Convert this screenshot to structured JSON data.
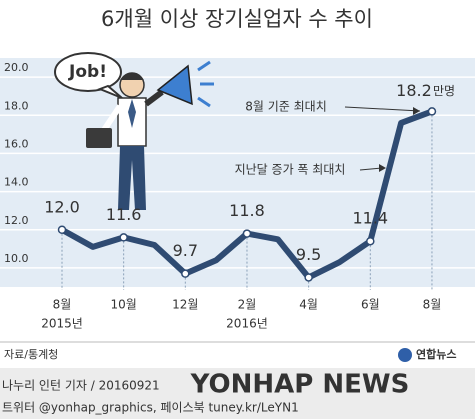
{
  "chart_data": {
    "type": "line",
    "title": "6개월 이상 장기실업자 수 추이",
    "categories": [
      "8월",
      null,
      "10월",
      null,
      "12월",
      null,
      "2월",
      null,
      "4월",
      null,
      "6월",
      null,
      "8월"
    ],
    "x_sublabels": [
      "2015년",
      null,
      null,
      null,
      null,
      null,
      "2016년",
      null,
      null,
      null,
      null,
      null,
      null
    ],
    "values": [
      12.0,
      11.1,
      11.6,
      11.2,
      9.7,
      10.4,
      11.8,
      11.5,
      9.5,
      10.3,
      11.4,
      17.6,
      18.2
    ],
    "value_labels": [
      "12.0",
      null,
      "11.6",
      null,
      "9.7",
      null,
      "11.8",
      null,
      "9.5",
      null,
      "11.4",
      null,
      "18.2"
    ],
    "unit": "만명",
    "color": "#2f4b72",
    "ylim": [
      9,
      21
    ],
    "yticks": [
      {
        "value": 10,
        "label": "10.0"
      },
      {
        "value": 12,
        "label": "12.0"
      },
      {
        "value": 14,
        "label": "14.0"
      },
      {
        "value": 16,
        "label": "16.0"
      },
      {
        "value": 18,
        "label": "18.0"
      },
      {
        "value": 20,
        "label": "20.0"
      }
    ],
    "grid": true,
    "annotations": [
      "8월 기준 최대치",
      "지난달 증가 폭 최대치"
    ],
    "illustration_text": "Job!",
    "source": "자료/통계청",
    "logo": "연합뉴스",
    "watermark": "YONHAP NEWS",
    "credit": "나누리 인턴 기자 / 20160921",
    "social": "트위터 @yonhap_graphics, 페이스북 tuney.kr/LeYN1"
  }
}
